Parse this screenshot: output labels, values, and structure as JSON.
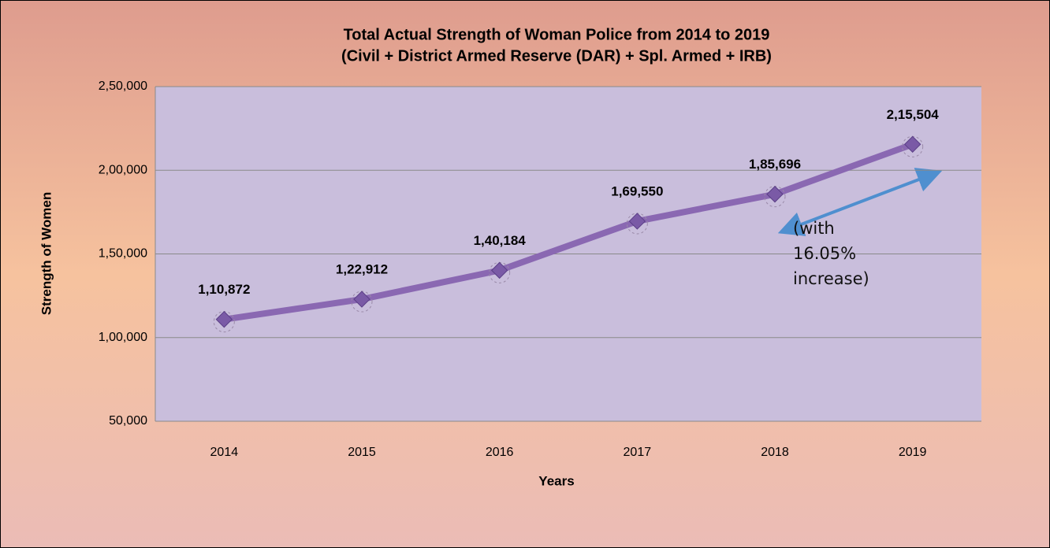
{
  "chart_data": {
    "type": "line",
    "title": "Total Actual Strength of Woman Police from 2014 to 2019",
    "subtitle": "(Civil + District Armed Reserve (DAR) + Spl. Armed + IRB)",
    "x_label": "Years",
    "y_label": "Strength of Women",
    "categories": [
      "2014",
      "2015",
      "2016",
      "2017",
      "2018",
      "2019"
    ],
    "series": [
      {
        "name": "Strength of Women",
        "color": "#8a68b2",
        "values": [
          110872,
          122912,
          140184,
          169550,
          185696,
          215504
        ],
        "value_labels": [
          "1,10,872",
          "1,22,912",
          "1,40,184",
          "1,69,550",
          "1,85,696",
          "2,15,504"
        ]
      }
    ],
    "ylim": [
      50000,
      250000
    ],
    "yticks": [
      {
        "value": 50000,
        "label": "50,000"
      },
      {
        "value": 100000,
        "label": "1,00,000"
      },
      {
        "value": 150000,
        "label": "1,50,000"
      },
      {
        "value": 200000,
        "label": "2,00,000"
      },
      {
        "value": 250000,
        "label": "2,50,000"
      }
    ],
    "grid": true,
    "annotation": "(with 16.05% increase)"
  }
}
